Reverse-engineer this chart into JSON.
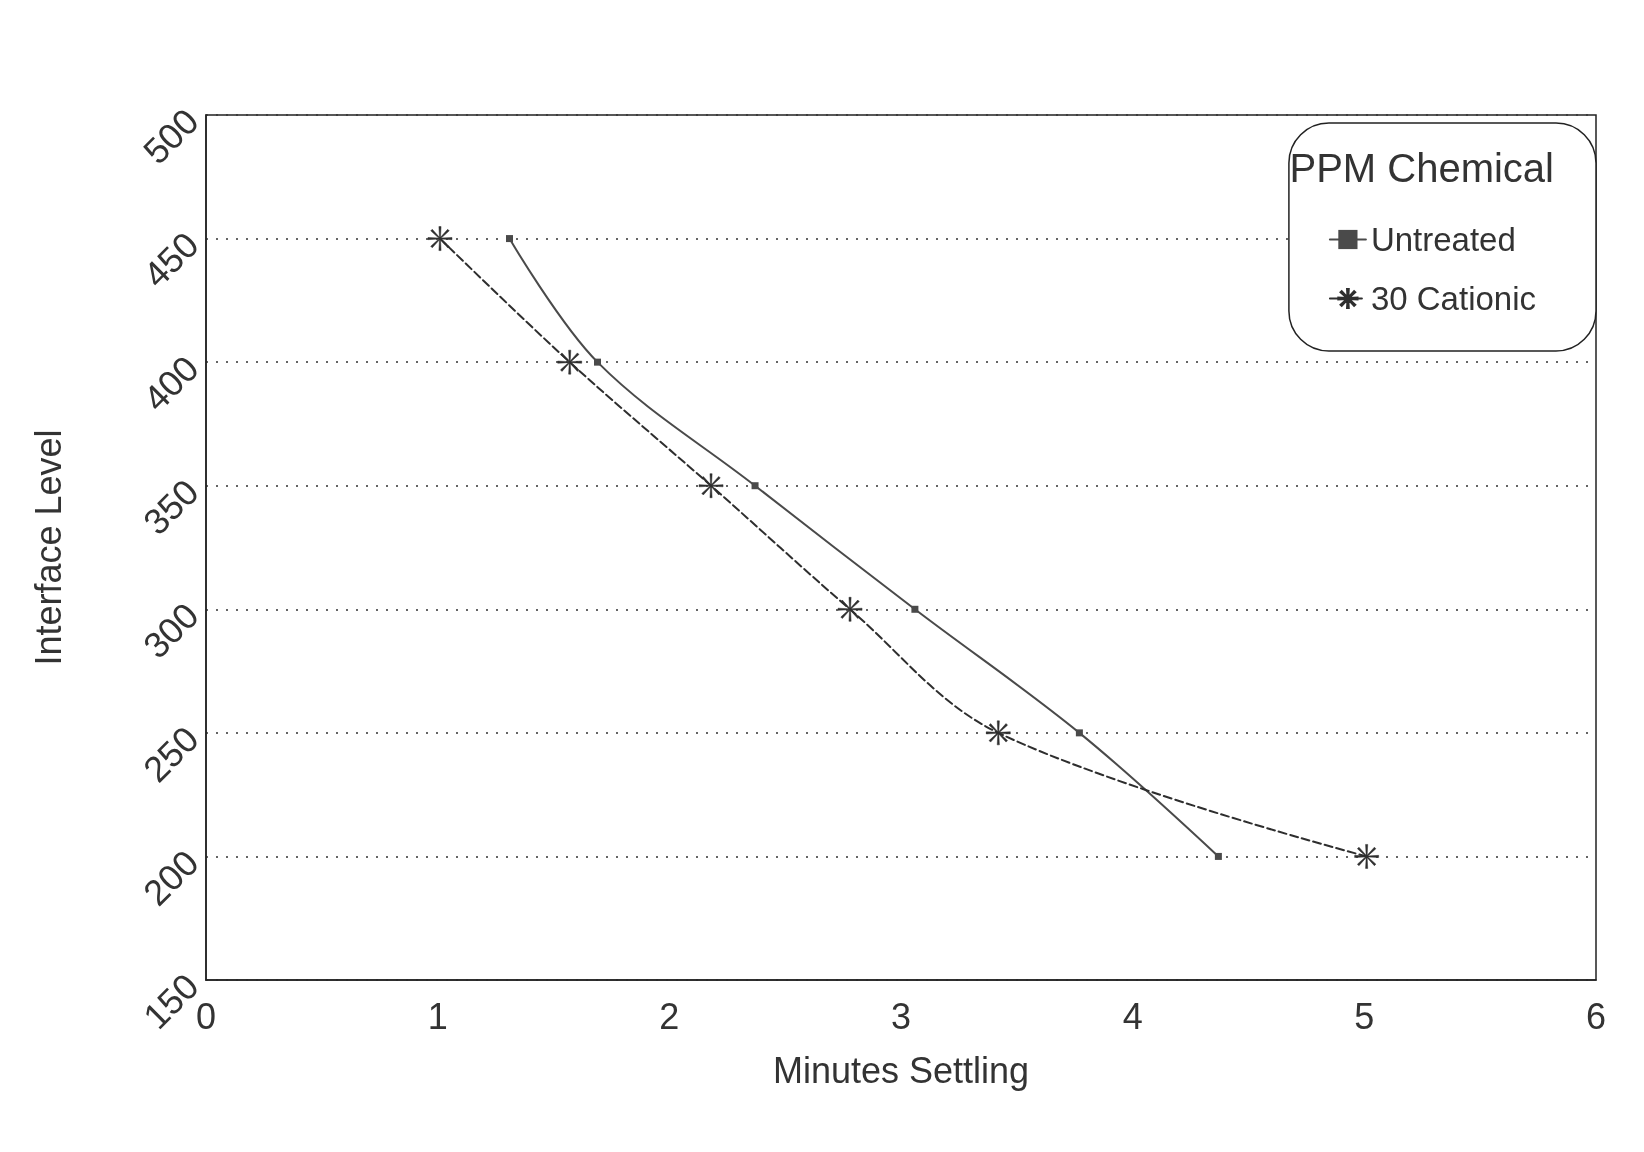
{
  "chart_data": {
    "type": "line",
    "xlabel": "Minutes Settling",
    "ylabel": "Interface Level",
    "legend_title": "PPM Chemical",
    "series": [
      {
        "name": "Untreated",
        "color": "#4a4a4a",
        "marker": "square",
        "line_style": "solid",
        "x": [
          1.31,
          1.69,
          2.37,
          3.06,
          3.77,
          4.37
        ],
        "values": [
          450,
          400,
          350,
          300,
          250,
          200
        ]
      },
      {
        "name": "30 Cationic",
        "color": "#2e2e2e",
        "marker": "cross",
        "line_style": "dashed",
        "x": [
          1.01,
          1.57,
          2.18,
          2.78,
          3.42,
          5.01
        ],
        "values": [
          450,
          400,
          350,
          300,
          250,
          200
        ]
      }
    ],
    "xlim": [
      0,
      6
    ],
    "xticks": [
      0,
      1,
      2,
      3,
      4,
      5,
      6
    ],
    "ylim": [
      150,
      500
    ],
    "yticks": [
      150,
      200,
      250,
      300,
      350,
      400,
      450,
      500
    ],
    "grid": "y",
    "legend": "top right"
  }
}
